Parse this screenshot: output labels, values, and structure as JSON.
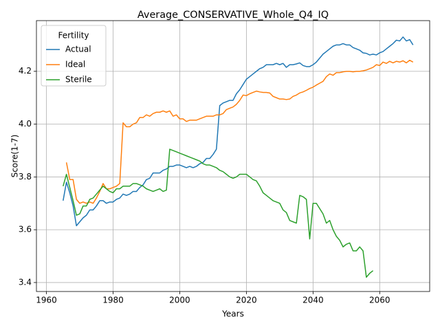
{
  "chart_data": {
    "type": "line",
    "title": "Average_CONSERVATIVE_Whole_Q4_IQ",
    "xlabel": "Years",
    "ylabel": "Score(1-7)",
    "legend_title": "Fertility",
    "legend": "upper left",
    "grid": true,
    "x": [
      1965,
      1966,
      1967,
      1968,
      1969,
      1970,
      1971,
      1972,
      1973,
      1974,
      1975,
      1976,
      1977,
      1978,
      1979,
      1980,
      1981,
      1982,
      1983,
      1984,
      1985,
      1986,
      1987,
      1988,
      1989,
      1990,
      1991,
      1992,
      1993,
      1994,
      1995,
      1996,
      1997,
      1998,
      1999,
      2000,
      2001,
      2002,
      2003,
      2004,
      2005,
      2006,
      2007,
      2008,
      2009,
      2010,
      2011,
      2012,
      2013,
      2014,
      2015,
      2016,
      2017,
      2018,
      2019,
      2020,
      2021,
      2022,
      2023,
      2024,
      2025,
      2026,
      2027,
      2028,
      2029,
      2030,
      2031,
      2032,
      2033,
      2034,
      2035,
      2036,
      2037,
      2038,
      2039,
      2040,
      2041,
      2042,
      2043,
      2044,
      2045,
      2046,
      2047,
      2048,
      2049,
      2050,
      2051,
      2052,
      2053,
      2054,
      2055,
      2056,
      2057,
      2058,
      2059,
      2060,
      2061,
      2062,
      2063,
      2064,
      2065,
      2066,
      2067,
      2068,
      2069,
      2070
    ],
    "series": [
      {
        "name": "Actual",
        "color": "#1f77b4",
        "values": [
          3.71,
          3.78,
          3.74,
          3.69,
          3.615,
          3.63,
          3.645,
          3.655,
          3.675,
          3.675,
          3.69,
          3.71,
          3.71,
          3.7,
          3.705,
          3.705,
          3.715,
          3.72,
          3.735,
          3.73,
          3.735,
          3.745,
          3.745,
          3.76,
          3.77,
          3.79,
          3.795,
          3.815,
          3.815,
          3.815,
          3.825,
          3.83,
          3.84,
          3.84,
          3.845,
          3.845,
          3.84,
          3.835,
          3.84,
          3.835,
          3.84,
          3.85,
          3.855,
          3.87,
          3.87,
          3.885,
          3.905,
          4.07,
          4.08,
          4.085,
          4.09,
          4.09,
          4.115,
          4.13,
          4.15,
          4.17,
          4.18,
          4.19,
          4.2,
          4.21,
          4.215,
          4.225,
          4.225,
          4.225,
          4.23,
          4.225,
          4.23,
          4.215,
          4.225,
          4.225,
          4.228,
          4.232,
          4.222,
          4.218,
          4.218,
          4.225,
          4.235,
          4.25,
          4.265,
          4.275,
          4.285,
          4.295,
          4.3,
          4.3,
          4.305,
          4.3,
          4.3,
          4.29,
          4.285,
          4.28,
          4.27,
          4.268,
          4.262,
          4.265,
          4.262,
          4.27,
          4.275,
          4.285,
          4.295,
          4.305,
          4.318,
          4.315,
          4.33,
          4.315,
          4.32,
          4.3
        ]
      },
      {
        "name": "Ideal",
        "color": "#ff7f0e",
        "values": [
          null,
          3.855,
          3.79,
          3.79,
          3.715,
          3.7,
          3.705,
          3.7,
          3.705,
          3.7,
          3.72,
          3.745,
          3.775,
          3.755,
          3.755,
          3.76,
          3.765,
          3.775,
          4.005,
          3.99,
          3.99,
          4.0,
          4.005,
          4.025,
          4.025,
          4.035,
          4.03,
          4.04,
          4.045,
          4.045,
          4.05,
          4.045,
          4.05,
          4.03,
          4.035,
          4.02,
          4.02,
          4.01,
          4.015,
          4.015,
          4.015,
          4.02,
          4.025,
          4.03,
          4.03,
          4.03,
          4.035,
          4.035,
          4.04,
          4.055,
          4.06,
          4.065,
          4.075,
          4.09,
          4.11,
          4.108,
          4.115,
          4.12,
          4.125,
          4.122,
          4.12,
          4.12,
          4.118,
          4.105,
          4.1,
          4.095,
          4.095,
          4.093,
          4.095,
          4.105,
          4.11,
          4.118,
          4.122,
          4.128,
          4.135,
          4.14,
          4.148,
          4.155,
          4.162,
          4.18,
          4.19,
          4.185,
          4.195,
          4.195,
          4.198,
          4.2,
          4.2,
          4.198,
          4.2,
          4.2,
          4.202,
          4.205,
          4.21,
          4.215,
          4.225,
          4.222,
          4.235,
          4.23,
          4.238,
          4.232,
          4.238,
          4.235,
          4.24,
          4.232,
          4.242,
          4.235
        ]
      },
      {
        "name": "Sterile",
        "color": "#2ca02c",
        "values": [
          3.765,
          3.81,
          3.76,
          3.71,
          3.655,
          3.66,
          3.69,
          3.69,
          3.715,
          3.72,
          3.735,
          3.75,
          3.765,
          3.755,
          3.745,
          3.74,
          3.755,
          3.755,
          3.765,
          3.765,
          3.765,
          3.775,
          3.775,
          3.77,
          3.765,
          3.755,
          3.75,
          3.745,
          3.75,
          3.755,
          3.745,
          3.75,
          3.905,
          3.9,
          3.895,
          3.89,
          3.885,
          3.88,
          3.875,
          3.87,
          3.865,
          3.86,
          3.85,
          3.845,
          3.845,
          3.84,
          3.835,
          3.825,
          3.82,
          3.81,
          3.8,
          3.795,
          3.8,
          3.81,
          3.81,
          3.81,
          3.8,
          3.79,
          3.785,
          3.765,
          3.74,
          3.73,
          3.72,
          3.71,
          3.705,
          3.7,
          3.675,
          3.665,
          3.635,
          3.63,
          3.625,
          3.73,
          3.725,
          3.715,
          3.565,
          3.7,
          3.7,
          3.68,
          3.66,
          3.625,
          3.635,
          3.6,
          3.575,
          3.56,
          3.535,
          3.545,
          3.55,
          3.52,
          3.52,
          3.535,
          3.52,
          3.42,
          3.435,
          3.445,
          null,
          null,
          null,
          null,
          null,
          null,
          null,
          null,
          null,
          null,
          null,
          null
        ]
      }
    ],
    "xlim": [
      1957,
      2075
    ],
    "xticks": [
      1960,
      1980,
      2000,
      2020,
      2040,
      2060
    ],
    "ylim": [
      3.366,
      4.392
    ],
    "yticks": [
      3.4,
      3.6,
      3.8,
      {
        "value": 4,
        "label": "4.0"
      },
      4.2
    ]
  }
}
